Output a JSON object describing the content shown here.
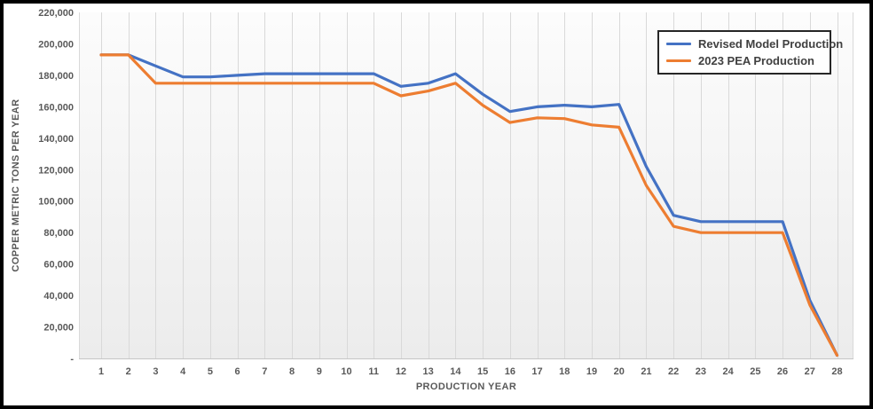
{
  "frame": {
    "border_color": "#000000",
    "background": "#ffffff"
  },
  "axes": {
    "x_title": "PRODUCTION YEAR",
    "y_title": "COPPER METRIC TONS PER YEAR"
  },
  "legend": {
    "entries": [
      {
        "label": "Revised Model Production",
        "color": "#4472C4"
      },
      {
        "label": "2023 PEA Production",
        "color": "#ED7D31"
      }
    ]
  },
  "chart_data": {
    "type": "line",
    "title": "",
    "xlabel": "PRODUCTION YEAR",
    "ylabel": "COPPER METRIC TONS PER YEAR",
    "x": [
      1,
      2,
      3,
      4,
      5,
      6,
      7,
      8,
      9,
      10,
      11,
      12,
      13,
      14,
      15,
      16,
      17,
      18,
      19,
      20,
      21,
      22,
      23,
      24,
      25,
      26,
      27,
      28
    ],
    "ylim": [
      0,
      220000
    ],
    "y_ticks": [
      0,
      20000,
      40000,
      60000,
      80000,
      100000,
      120000,
      140000,
      160000,
      180000,
      200000,
      220000
    ],
    "y_tick_labels": [
      "-",
      "20,000",
      "40,000",
      "60,000",
      "80,000",
      "100,000",
      "120,000",
      "140,000",
      "160,000",
      "180,000",
      "200,000",
      "220,000"
    ],
    "grid": "vertical-only",
    "legend_position": "top-right",
    "series": [
      {
        "name": "Revised Model Production",
        "color": "#4472C4",
        "values": [
          193000,
          193000,
          186000,
          179000,
          179000,
          180000,
          181000,
          181000,
          181000,
          181000,
          181000,
          173000,
          175000,
          181000,
          168000,
          157000,
          160000,
          161000,
          160000,
          161500,
          122000,
          91000,
          87000,
          87000,
          87000,
          87000,
          37000,
          2000
        ]
      },
      {
        "name": "2023 PEA Production",
        "color": "#ED7D31",
        "values": [
          193000,
          193000,
          175000,
          175000,
          175000,
          175000,
          175000,
          175000,
          175000,
          175000,
          175000,
          167000,
          170000,
          175000,
          161000,
          150000,
          153000,
          152500,
          148500,
          147000,
          110000,
          84000,
          80000,
          80000,
          80000,
          80000,
          34000,
          2000
        ]
      }
    ]
  },
  "styles": {
    "tick_color": "#595959",
    "legend_text_color": "#404040",
    "gridline_color": "#D9D9D9",
    "axis_line_color": "#C6C6C6",
    "plot_bg_top": "#FCFCFC",
    "plot_bg_bottom": "#ECECEC"
  }
}
